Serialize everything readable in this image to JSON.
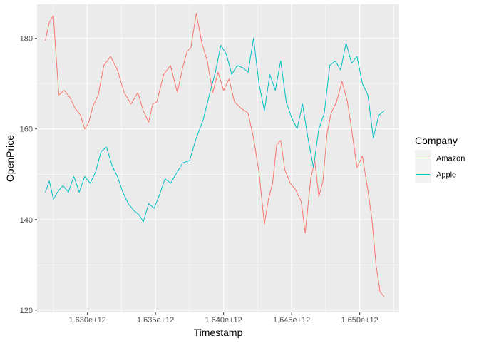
{
  "chart_data": {
    "type": "line",
    "xlabel": "Timestamp",
    "ylabel": "OpenPrice",
    "xlim": [
      1626300000000,
      1652900000000
    ],
    "ylim": [
      119.5,
      187.5
    ],
    "x_ticks": [
      {
        "value": 1630000000000,
        "label": "1.630e+12"
      },
      {
        "value": 1635000000000,
        "label": "1.635e+12"
      },
      {
        "value": 1640000000000,
        "label": "1.640e+12"
      },
      {
        "value": 1645000000000,
        "label": "1.645e+12"
      },
      {
        "value": 1650000000000,
        "label": "1.650e+12"
      }
    ],
    "y_ticks": [
      {
        "value": 120,
        "label": "120"
      },
      {
        "value": 140,
        "label": "140"
      },
      {
        "value": 160,
        "label": "160"
      },
      {
        "value": 180,
        "label": "180"
      }
    ],
    "grid": true,
    "legend": {
      "title": "Company",
      "position": "right"
    },
    "series": [
      {
        "name": "Amazon",
        "color": "#F8766D",
        "x": [
          1626900000000,
          1627200000000,
          1627500000000,
          1627700000000,
          1627900000000,
          1628300000000,
          1628700000000,
          1629100000000,
          1629500000000,
          1629800000000,
          1630100000000,
          1630400000000,
          1630800000000,
          1631200000000,
          1631700000000,
          1632200000000,
          1632700000000,
          1633200000000,
          1633700000000,
          1634100000000,
          1634500000000,
          1634800000000,
          1635100000000,
          1635600000000,
          1636100000000,
          1636600000000,
          1637000000000,
          1637300000000,
          1637600000000,
          1638000000000,
          1638400000000,
          1638800000000,
          1639200000000,
          1639600000000,
          1640000000000,
          1640400000000,
          1640800000000,
          1641300000000,
          1641800000000,
          1642200000000,
          1642600000000,
          1643000000000,
          1643300000000,
          1643600000000,
          1643900000000,
          1644200000000,
          1644500000000,
          1644900000000,
          1645300000000,
          1645700000000,
          1646000000000,
          1646400000000,
          1646700000000,
          1647000000000,
          1647300000000,
          1647600000000,
          1647900000000,
          1648300000000,
          1648700000000,
          1649100000000,
          1649400000000,
          1649800000000,
          1650200000000,
          1650600000000,
          1650900000000,
          1651200000000,
          1651500000000,
          1651800000000
        ],
        "y": [
          179.5,
          183.5,
          185.0,
          176.0,
          167.5,
          168.5,
          167.0,
          164.5,
          163.0,
          160.0,
          161.5,
          165.0,
          167.5,
          174.0,
          176.0,
          173.0,
          168.0,
          165.5,
          168.0,
          164.0,
          161.5,
          165.5,
          166.0,
          172.0,
          174.0,
          168.0,
          173.5,
          177.0,
          178.0,
          185.5,
          179.0,
          175.0,
          168.0,
          172.5,
          168.5,
          171.0,
          166.0,
          164.5,
          163.5,
          158.0,
          150.5,
          139.0,
          144.5,
          148.0,
          156.5,
          157.5,
          151.0,
          148.0,
          146.5,
          144.0,
          137.0,
          149.0,
          153.0,
          145.0,
          148.5,
          159.0,
          163.5,
          166.0,
          170.5,
          166.0,
          160.0,
          151.5,
          154.0,
          146.5,
          140.0,
          130.0,
          124.0,
          123.0
        ]
      },
      {
        "name": "Apple",
        "color": "#00BFC4",
        "x": [
          1626900000000,
          1627200000000,
          1627500000000,
          1627800000000,
          1628200000000,
          1628600000000,
          1629000000000,
          1629400000000,
          1629800000000,
          1630200000000,
          1630600000000,
          1631000000000,
          1631400000000,
          1631800000000,
          1632200000000,
          1632600000000,
          1633000000000,
          1633400000000,
          1633800000000,
          1634100000000,
          1634500000000,
          1634900000000,
          1635300000000,
          1635700000000,
          1636100000000,
          1636500000000,
          1637000000000,
          1637500000000,
          1638000000000,
          1638500000000,
          1639000000000,
          1639400000000,
          1639800000000,
          1640200000000,
          1640600000000,
          1641000000000,
          1641400000000,
          1641800000000,
          1642200000000,
          1642600000000,
          1643000000000,
          1643400000000,
          1643800000000,
          1644200000000,
          1644600000000,
          1645000000000,
          1645400000000,
          1645800000000,
          1646200000000,
          1646600000000,
          1647000000000,
          1647400000000,
          1647800000000,
          1648200000000,
          1648600000000,
          1649000000000,
          1649400000000,
          1649800000000,
          1650200000000,
          1650600000000,
          1651000000000,
          1651400000000,
          1651800000000
        ],
        "y": [
          146.0,
          148.5,
          144.5,
          146.0,
          147.5,
          146.0,
          149.5,
          146.0,
          149.5,
          148.0,
          150.5,
          155.0,
          156.0,
          152.0,
          149.5,
          146.0,
          143.5,
          142.0,
          141.0,
          139.5,
          143.5,
          142.5,
          145.5,
          149.0,
          148.0,
          150.0,
          152.5,
          153.0,
          158.0,
          162.0,
          168.0,
          172.5,
          178.5,
          176.5,
          172.0,
          174.0,
          173.5,
          172.5,
          180.0,
          170.0,
          164.0,
          172.0,
          168.5,
          175.0,
          166.0,
          162.5,
          160.0,
          165.5,
          158.0,
          151.5,
          160.0,
          163.5,
          174.0,
          175.0,
          173.0,
          179.0,
          174.5,
          176.0,
          170.0,
          167.5,
          158.0,
          163.0,
          164.0
        ]
      }
    ]
  }
}
